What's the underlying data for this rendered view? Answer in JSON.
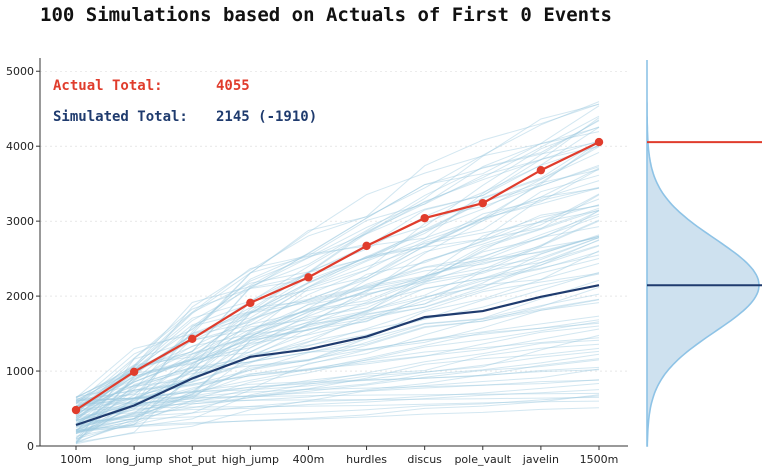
{
  "chart_data": {
    "type": "line",
    "title": "100 Simulations based on Actuals of First 0 Events",
    "xlabel": "",
    "ylabel": "",
    "categories": [
      "100m",
      "long_jump",
      "shot_put",
      "high_jump",
      "400m",
      "hurdles",
      "discus",
      "pole_vault",
      "javelin",
      "1500m"
    ],
    "ylim": [
      0,
      5150
    ],
    "yticks": [
      0,
      1000,
      2000,
      3000,
      4000,
      5000
    ],
    "grid": true,
    "series": [
      {
        "name": "Actual Total",
        "values": [
          480,
          990,
          1430,
          1910,
          2250,
          2670,
          3040,
          3240,
          3680,
          4055
        ]
      },
      {
        "name": "Simulated Total",
        "values": [
          280,
          540,
          900,
          1190,
          1290,
          1460,
          1720,
          1800,
          1990,
          2145
        ]
      }
    ],
    "annotations": {
      "actual_label": "Actual Total:",
      "actual_value": "4055",
      "simulated_label": "Simulated Total:",
      "simulated_value": "2145 (-1910)"
    },
    "simulations": {
      "count": 100,
      "final_min": 450,
      "final_max": 4750,
      "final_mean": 2145,
      "final_sd": 620
    },
    "distribution": {
      "mean": 2145,
      "sd": 620,
      "actual": 4055,
      "simulated": 2145
    },
    "colors": {
      "actual": "#e03c2c",
      "simulated": "#1f3b6e",
      "simulation_lines": "#9ecae1",
      "density_fill": "#c6dcec",
      "density_line": "#8ec3e6",
      "axis": "#333333",
      "grid": "#d9d9d9"
    }
  }
}
